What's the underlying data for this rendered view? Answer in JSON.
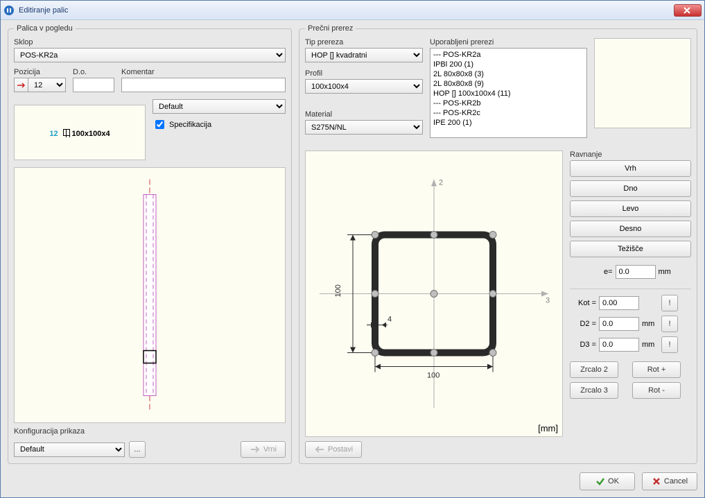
{
  "window": {
    "title": "Editiranje palic"
  },
  "left": {
    "fieldset_legend": "Palica v pogledu",
    "sklop_label": "Sklop",
    "sklop_value": "POS-KR2a",
    "pozicija_label": "Pozicija",
    "pozicija_value": "12",
    "do_label": "D.o.",
    "do_value": "",
    "komentar_label": "Komentar",
    "komentar_value": "",
    "style_value": "Default",
    "spec_label": "Specifikacija",
    "spec_checked": true,
    "preview_num": "12",
    "preview_profile": "100x100x4",
    "config_label": "Konfiguracija prikaza",
    "config_value": "Default",
    "more_btn": "...",
    "vrni_btn": "Vrni",
    "elev": {
      "bg": "#fdfdf2",
      "bar_outer_stroke": "#c060c0",
      "bar_inner_fill": "#ffffff",
      "centerline": "#d04040",
      "handle_stroke": "#000000"
    }
  },
  "right": {
    "fieldset_legend": "Prečni prerez",
    "tip_label": "Tip prereza",
    "tip_value": "HOP [] kvadratni",
    "profil_label": "Profil",
    "profil_value": "100x100x4",
    "material_label": "Material",
    "material_value": "S275N/NL",
    "used_label": "Uporabljeni prerezi",
    "used_items": [
      "--- POS-KR2a",
      "IPBl 200 (1)",
      "2L 80x80x8 (3)",
      "2L 80x80x8 (9)",
      "HOP [] 100x100x4 (11)",
      "--- POS-KR2b",
      "--- POS-KR2c",
      "IPE 200 (1)"
    ],
    "postavi_btn": "Postavi",
    "unit_text": "[mm]",
    "section": {
      "width": 100,
      "thickness": 4,
      "dim_100_h": "100",
      "dim_100_v": "100",
      "dim_4": "4",
      "axis2": "2",
      "axis3": "3",
      "bg": "#fdfdf2",
      "shape_stroke": "#2a2a2a",
      "axis_color": "#b0b0b0",
      "handle_fill": "#bfbfbf",
      "handle_stroke": "#707070",
      "dim_color": "#2a2a2a"
    }
  },
  "side": {
    "ravnanje_label": "Ravnanje",
    "btn_vrh": "Vrh",
    "btn_dno": "Dno",
    "btn_levo": "Levo",
    "btn_desno": "Desno",
    "btn_tezisce": "Težišče",
    "e_label": "e=",
    "e_value": "0.0",
    "mm": "mm",
    "kot_label": "Kot =",
    "kot_value": "0.00",
    "d2_label": "D2 =",
    "d2_value": "0.0",
    "d3_label": "D3 =",
    "d3_value": "0.0",
    "bang": "!",
    "zrcalo2": "Zrcalo 2",
    "zrcalo3": "Zrcalo 3",
    "rotplus": "Rot +",
    "rotminus": "Rot -"
  },
  "footer": {
    "ok": "OK",
    "cancel": "Cancel"
  }
}
